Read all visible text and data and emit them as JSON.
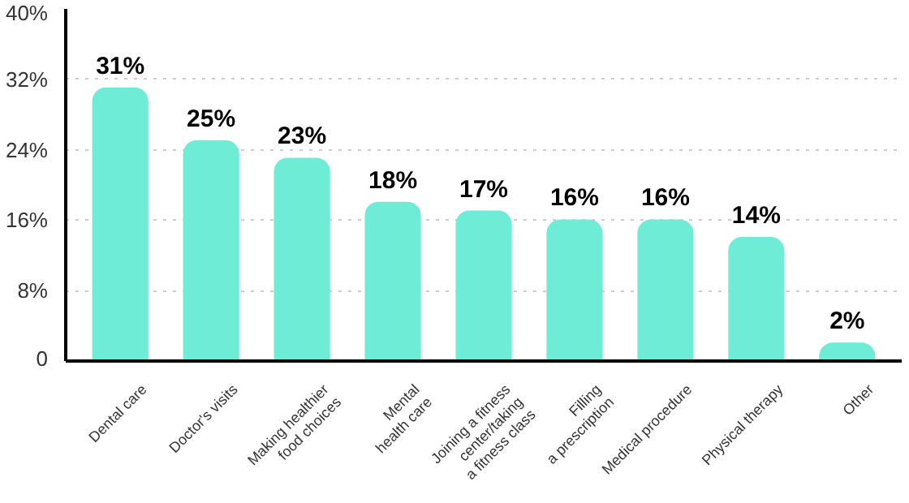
{
  "chart_data": {
    "type": "bar",
    "categories": [
      "Dental care",
      "Doctor's visits",
      "Making healthier\nfood choices",
      "Mental\nhealth care",
      "Joining a fitness\ncenter/taking\na fitness class",
      "Filling\na prescription",
      "Medical procedure",
      "Physical therapy",
      "Other"
    ],
    "values": [
      31,
      25,
      23,
      18,
      17,
      16,
      16,
      14,
      2
    ],
    "value_labels": [
      "31%",
      "25%",
      "23%",
      "18%",
      "17%",
      "16%",
      "16%",
      "14%",
      "2%"
    ],
    "color": "#6eecd6",
    "ylim": [
      0,
      40
    ],
    "yticks": [
      {
        "value": 0,
        "label": "0"
      },
      {
        "value": 8,
        "label": "8%"
      },
      {
        "value": 16,
        "label": "16%"
      },
      {
        "value": 24,
        "label": "24%"
      },
      {
        "value": 32,
        "label": "32%"
      },
      {
        "value": 40,
        "label": "40%"
      }
    ],
    "grid": "y"
  }
}
